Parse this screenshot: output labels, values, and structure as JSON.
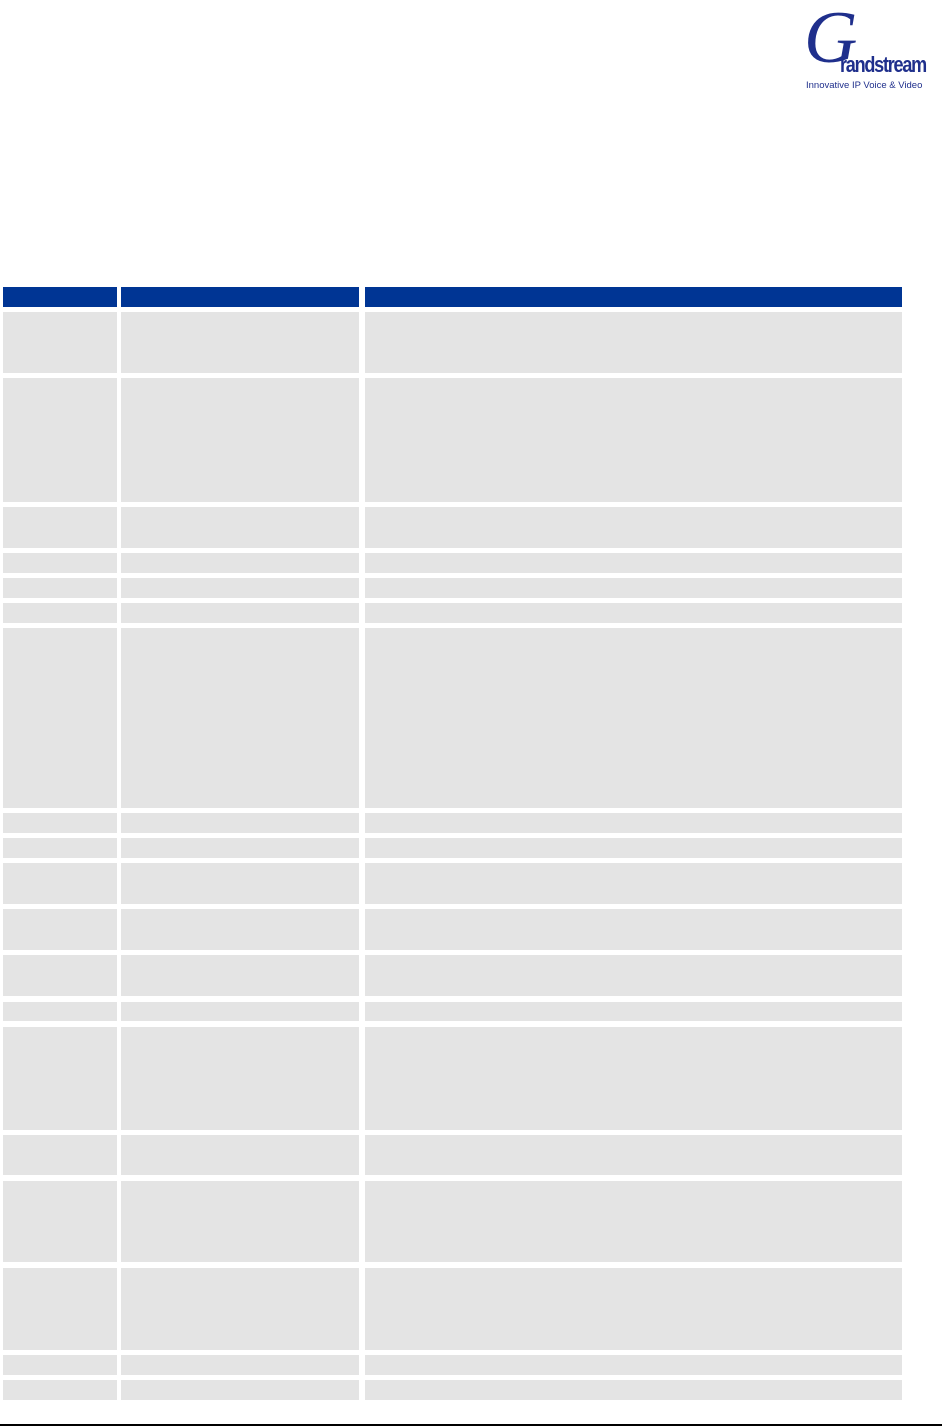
{
  "logo": {
    "brand": "Grandstream",
    "initial": "G",
    "rest": "randstream",
    "tagline": "Innovative IP Voice & Video"
  },
  "table": {
    "header_color": "#003594",
    "row_color": "#e4e4e4",
    "columns": 3,
    "rows": 19
  }
}
